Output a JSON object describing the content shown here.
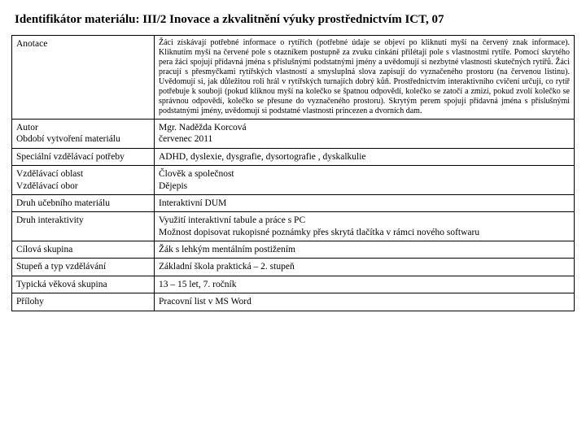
{
  "title": "Identifikátor materiálu: III/2 Inovace a zkvalitnění výuky prostřednictvím ICT, 07",
  "rows": {
    "anotace_label": "Anotace",
    "anotace_value": "Žáci získávají potřebné informace o rytířích (potřebné údaje se objeví po kliknutí myší na červený znak informace). Kliknutím myší na červené pole s otazníkem postupně za zvuku cinkání přilétají pole s vlastnostmi rytíře. Pomocí skrytého pera žáci spojují přídavná jména s příslušnými podstatnými jmény a uvědomují si nezbytné vlastnosti  skutečných rytířů. Žáci pracují s přesmyčkami rytířských vlastností a smysluplná slova zapisují do vyznačeného prostoru (na červenou listinu). Uvědomují si, jak důležitou roli hrál v rytířských turnajích dobrý kůň. Prostřednictvím interaktivního cvičení určují, co rytíř potřebuje k souboji (pokud kliknou myší na kolečko se špatnou odpovědí, kolečko se zatočí a zmizí, pokud zvolí kolečko se správnou odpovědí, kolečko se přesune do vyznačeného prostoru). Skrytým perem spojují přídavná jména s příslušnými podstatnými jmény, uvědomují si podstatné vlastnosti princezen a dvorních dam.",
    "autor_label1": "Autor",
    "autor_label2": "Období vytvoření materiálu",
    "autor_value1": "Mgr. Naděžda Korcová",
    "autor_value2": "červenec 2011",
    "spec_label": "Speciální vzdělávací potřeby",
    "spec_value": "ADHD, dyslexie, dysgrafie, dysortografie , dyskalkulie",
    "oblast_label1": "Vzdělávací oblast",
    "oblast_label2": "Vzdělávací obor",
    "oblast_value1": "Člověk a společnost",
    "oblast_value2": "Dějepis",
    "druh_label": "Druh učebního materiálu",
    "druh_value": "Interaktivní DUM",
    "inter_label": "Druh interaktivity",
    "inter_value1": "Využití interaktivní tabule a práce s PC",
    "inter_value2": "Možnost dopisovat rukopisné poznámky přes skrytá tlačítka v rámci nového softwaru",
    "cil_label": "Cílová skupina",
    "cil_value": "Žák s lehkým mentálním postižením",
    "stupen_label": "Stupeň a typ vzdělávání",
    "stupen_value": "Základní škola praktická – 2. stupeň",
    "vek_label": "Typická věková skupina",
    "vek_value": "13 – 15 let, 7. ročník",
    "prilohy_label": "Přílohy",
    "prilohy_value": "Pracovní list v MS Word"
  }
}
